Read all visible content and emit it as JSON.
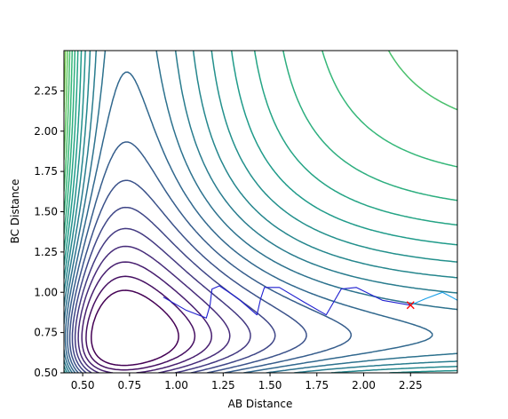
{
  "chart_data": {
    "type": "contour",
    "xlabel": "AB Distance",
    "ylabel": "BC Distance",
    "xlim": [
      0.4,
      2.5
    ],
    "ylim": [
      0.5,
      2.5
    ],
    "x_ticks": [
      "0.50",
      "0.75",
      "1.00",
      "1.25",
      "1.50",
      "1.75",
      "2.00",
      "2.25"
    ],
    "y_ticks": [
      "0.50",
      "0.75",
      "1.00",
      "1.25",
      "1.50",
      "1.75",
      "2.00",
      "2.25"
    ],
    "colormap": "viridis",
    "contour_level_count": 25,
    "trajectories": [
      {
        "color": "#1f1fd0",
        "points": [
          [
            0.93,
            0.97
          ],
          [
            1.05,
            0.89
          ],
          [
            1.16,
            0.84
          ],
          [
            1.18,
            0.92
          ],
          [
            1.19,
            1.02
          ],
          [
            1.23,
            1.04
          ],
          [
            1.33,
            0.96
          ],
          [
            1.43,
            0.86
          ],
          [
            1.45,
            0.96
          ],
          [
            1.47,
            1.03
          ],
          [
            1.55,
            1.03
          ],
          [
            1.68,
            0.94
          ],
          [
            1.8,
            0.86
          ],
          [
            1.84,
            0.94
          ],
          [
            1.88,
            1.02
          ],
          [
            1.96,
            1.03
          ],
          [
            2.1,
            0.95
          ],
          [
            2.25,
            0.92
          ]
        ]
      },
      {
        "color": "#1aa0e8",
        "points": [
          [
            2.25,
            0.92
          ],
          [
            2.33,
            0.96
          ],
          [
            2.42,
            1.0
          ],
          [
            2.47,
            0.97
          ],
          [
            2.5,
            0.95
          ]
        ]
      }
    ],
    "start_marker": {
      "x": 2.25,
      "y": 0.92,
      "symbol": "x",
      "color": "#ff0000"
    }
  }
}
